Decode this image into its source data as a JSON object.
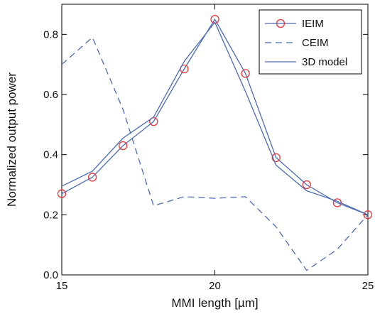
{
  "chart_data": {
    "type": "line",
    "xlabel": "MMI length [µm]",
    "ylabel": "Normalized output power",
    "xlim": [
      15,
      25
    ],
    "ylim": [
      0.0,
      0.9
    ],
    "x_ticks": [
      "15",
      "20",
      "25"
    ],
    "y_ticks": [
      "0.0",
      "0.2",
      "0.4",
      "0.6",
      "0.8"
    ],
    "grid": false,
    "legend_position": "top-right",
    "series": [
      {
        "name": "IEIM",
        "style": "solid-with-circle-markers",
        "line_color": "#4a6bb5",
        "marker_color": "#e8363a",
        "x": [
          15,
          16,
          17,
          18,
          19,
          20,
          21,
          22,
          23,
          24,
          25
        ],
        "y": [
          0.27,
          0.325,
          0.43,
          0.51,
          0.685,
          0.85,
          0.67,
          0.39,
          0.3,
          0.24,
          0.2
        ]
      },
      {
        "name": "CEIM",
        "style": "dashed",
        "line_color": "#4a6bb5",
        "x": [
          15,
          16,
          17,
          18,
          19,
          20,
          21,
          22,
          23,
          24,
          25
        ],
        "y": [
          0.7,
          0.79,
          0.55,
          0.23,
          0.26,
          0.255,
          0.26,
          0.16,
          0.015,
          0.085,
          0.2
        ]
      },
      {
        "name": "3D model",
        "style": "solid",
        "line_color": "#4a6bb5",
        "x": [
          15,
          16,
          17,
          18,
          19,
          20,
          21,
          22,
          23,
          24,
          25
        ],
        "y": [
          0.295,
          0.345,
          0.455,
          0.525,
          0.71,
          0.84,
          0.61,
          0.365,
          0.28,
          0.245,
          0.2
        ]
      }
    ]
  }
}
